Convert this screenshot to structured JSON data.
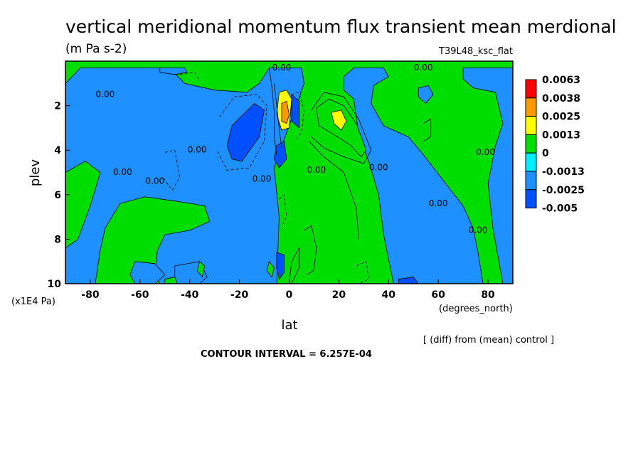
{
  "chart_data": {
    "type": "contour",
    "title": "vertical meridional momentum flux transient mean merdional",
    "units": "(m Pa s-2)",
    "model_label": "T39L48_ksc_flat",
    "xlabel": "lat",
    "x_units": "(degrees_north)",
    "ylabel": "plev",
    "y_units": "(x1E4 Pa)",
    "xlim": [
      -90,
      90
    ],
    "ylim": [
      10,
      0
    ],
    "x_ticks": [
      -80,
      -60,
      -40,
      -20,
      0,
      20,
      40,
      60,
      80
    ],
    "y_ticks": [
      2,
      4,
      6,
      8,
      10
    ],
    "note": "[ (diff) from (mean) control ]",
    "contour_interval_text": "CONTOUR INTERVAL = 6.257E-04",
    "colorbar": {
      "levels": [
        "0.0063",
        "0.0038",
        "0.0025",
        "0.0013",
        "0",
        "-0.0013",
        "-0.0025",
        "-0.005"
      ],
      "colors": [
        "#ff0000",
        "#ff9900",
        "#ffff00",
        "#00dd00",
        "#00eeff",
        "#1e90ff",
        "#0050ff"
      ]
    },
    "contour_label_text": "0.00",
    "contour_labels": [
      {
        "lat": -3,
        "plev": 0.3
      },
      {
        "lat": 54,
        "plev": 0.3
      },
      {
        "lat": -74,
        "plev": 1.5
      },
      {
        "lat": -37,
        "plev": 4.0
      },
      {
        "lat": -67,
        "plev": 5.0
      },
      {
        "lat": -54,
        "plev": 5.4
      },
      {
        "lat": -11,
        "plev": 5.3
      },
      {
        "lat": 11,
        "plev": 4.9
      },
      {
        "lat": 36,
        "plev": 4.8
      },
      {
        "lat": 79,
        "plev": 4.1
      },
      {
        "lat": 60,
        "plev": 6.4
      },
      {
        "lat": 76,
        "plev": 7.6
      }
    ],
    "regions": [
      {
        "name": "cyan-west-band",
        "level": "-0.0013",
        "polygon": [
          [
            -90,
            1.0
          ],
          [
            -84,
            0.3
          ],
          [
            -76,
            0.3
          ],
          [
            -62,
            0.3
          ],
          [
            -48,
            0.3
          ],
          [
            -42,
            1.0
          ],
          [
            -30,
            1.3
          ],
          [
            -17,
            1.4
          ],
          [
            -12,
            1.0
          ],
          [
            -8,
            0.3
          ],
          [
            5,
            0.3
          ],
          [
            6,
            1.0
          ],
          [
            3,
            2.0
          ],
          [
            -1,
            3.2
          ],
          [
            -6,
            4.8
          ],
          [
            -4,
            7.0
          ],
          [
            -5,
            10
          ],
          [
            -52,
            10
          ],
          [
            -54,
            9.6
          ],
          [
            -53,
            8.5
          ],
          [
            -50,
            7.8
          ],
          [
            -40,
            7.6
          ],
          [
            -32,
            7.2
          ],
          [
            -34,
            6.5
          ],
          [
            -45,
            6.3
          ],
          [
            -58,
            6.1
          ],
          [
            -68,
            6.4
          ],
          [
            -74,
            7.5
          ],
          [
            -76,
            8.5
          ],
          [
            -78,
            10
          ],
          [
            -90,
            10
          ],
          [
            -90,
            8.4
          ],
          [
            -85,
            8.0
          ],
          [
            -80,
            6.5
          ],
          [
            -76,
            5.0
          ],
          [
            -82,
            4.5
          ],
          [
            -90,
            5.0
          ]
        ]
      },
      {
        "name": "cyan-east-band",
        "level": "-0.0013",
        "polygon": [
          [
            26,
            0.3
          ],
          [
            38,
            0.3
          ],
          [
            40,
            0.7
          ],
          [
            34,
            1.1
          ],
          [
            33,
            1.9
          ],
          [
            38,
            2.9
          ],
          [
            48,
            3.4
          ],
          [
            54,
            4.2
          ],
          [
            63,
            5.5
          ],
          [
            70,
            6.5
          ],
          [
            74,
            7.5
          ],
          [
            76,
            8.6
          ],
          [
            78,
            10
          ],
          [
            42,
            10
          ],
          [
            38,
            7.8
          ],
          [
            36,
            6.0
          ],
          [
            32,
            4.5
          ],
          [
            28,
            3.3
          ],
          [
            26,
            1.7
          ],
          [
            22,
            1.3
          ],
          [
            22,
            0.7
          ]
        ]
      },
      {
        "name": "cyan-northpole",
        "level": "-0.0013",
        "polygon": [
          [
            70,
            0.3
          ],
          [
            90,
            0.3
          ],
          [
            90,
            10
          ],
          [
            86,
            10
          ],
          [
            82,
            7.5
          ],
          [
            80,
            5.5
          ],
          [
            83,
            3.8
          ],
          [
            86,
            2.8
          ],
          [
            83,
            1.4
          ],
          [
            74,
            1.2
          ],
          [
            70,
            0.8
          ]
        ]
      },
      {
        "name": "cyan-sth-small",
        "level": "-0.0013",
        "polygon": [
          [
            52,
            1.2
          ],
          [
            56,
            1.1
          ],
          [
            58,
            1.5
          ],
          [
            55,
            1.9
          ],
          [
            52,
            1.6
          ]
        ]
      },
      {
        "name": "cyan-high",
        "level": "-0.0013",
        "polygon": [
          [
            -52,
            0.3
          ],
          [
            -42,
            0.3
          ],
          [
            -41,
            0.5
          ],
          [
            -46,
            0.6
          ],
          [
            -52,
            0.5
          ]
        ]
      },
      {
        "name": "cyan-low-60s",
        "level": "-0.0013",
        "polygon": [
          [
            -62,
            9.0
          ],
          [
            -54,
            9.1
          ],
          [
            -50,
            9.6
          ],
          [
            -54,
            10
          ],
          [
            -62,
            10
          ],
          [
            -64,
            9.6
          ]
        ]
      },
      {
        "name": "cyan-low-40s",
        "level": "-0.0013",
        "polygon": [
          [
            -46,
            9.2
          ],
          [
            -36,
            9.0
          ],
          [
            -33,
            9.7
          ],
          [
            -36,
            10
          ],
          [
            -46,
            10
          ]
        ]
      },
      {
        "name": "blue-20S",
        "level": "-0.0025",
        "polygon": [
          [
            -23,
            2.9
          ],
          [
            -14,
            1.9
          ],
          [
            -10,
            2.2
          ],
          [
            -12,
            3.4
          ],
          [
            -19,
            4.5
          ],
          [
            -23,
            4.4
          ],
          [
            -25,
            3.8
          ]
        ]
      },
      {
        "name": "blue-eq-upper",
        "level": "-0.0025",
        "polygon": [
          [
            1,
            1.5
          ],
          [
            4,
            1.8
          ],
          [
            4,
            3.0
          ],
          [
            1,
            2.7
          ]
        ]
      },
      {
        "name": "blue-eq-mid",
        "level": "-0.0025",
        "polygon": [
          [
            -5,
            3.8
          ],
          [
            -2,
            3.6
          ],
          [
            -1,
            4.4
          ],
          [
            -4,
            4.8
          ],
          [
            -6,
            4.4
          ]
        ]
      },
      {
        "name": "blue-eq-low",
        "level": "-0.0025",
        "polygon": [
          [
            -5,
            8.6
          ],
          [
            -2,
            8.7
          ],
          [
            -2,
            9.5
          ],
          [
            -4,
            9.8
          ],
          [
            -5,
            9.3
          ]
        ]
      },
      {
        "name": "blue-low-48",
        "level": "-0.0025",
        "polygon": [
          [
            44,
            9.8
          ],
          [
            50,
            9.7
          ],
          [
            52,
            10
          ],
          [
            44,
            10
          ]
        ]
      },
      {
        "name": "orange-eq",
        "level": "0.0025",
        "polygon": [
          [
            -4,
            1.4
          ],
          [
            -1,
            1.3
          ],
          [
            1,
            1.7
          ],
          [
            0,
            3.0
          ],
          [
            -3,
            3.1
          ],
          [
            -5,
            2.4
          ]
        ]
      },
      {
        "name": "red-eq",
        "level": "0.0038",
        "polygon": [
          [
            -3,
            1.9
          ],
          [
            -1,
            1.8
          ],
          [
            0,
            2.4
          ],
          [
            -1,
            2.8
          ],
          [
            -3,
            2.7
          ]
        ]
      },
      {
        "name": "yellow-20N",
        "level": "0.0013",
        "polygon": [
          [
            11,
            2.1
          ],
          [
            16,
            1.7
          ],
          [
            22,
            2.0
          ],
          [
            27,
            2.8
          ],
          [
            31,
            4.0
          ],
          [
            29,
            4.3
          ],
          [
            25,
            3.8
          ],
          [
            18,
            3.3
          ],
          [
            12,
            2.9
          ]
        ]
      },
      {
        "name": "orange-20N",
        "level": "0.0025",
        "polygon": [
          [
            17,
            2.3
          ],
          [
            21,
            2.2
          ],
          [
            23,
            2.7
          ],
          [
            21,
            3.1
          ],
          [
            18,
            2.8
          ]
        ]
      },
      {
        "name": "yellow-low-eq",
        "level": "0.0013",
        "polygon": [
          [
            1,
            9.0
          ],
          [
            4,
            8.4
          ],
          [
            4,
            9.3
          ],
          [
            1,
            10
          ],
          [
            0,
            10
          ]
        ]
      },
      {
        "name": "yellow-low-35S",
        "level": "0.0013",
        "polygon": [
          [
            -36,
            9.0
          ],
          [
            -34,
            9.2
          ],
          [
            -35,
            9.7
          ],
          [
            -37,
            9.4
          ]
        ]
      },
      {
        "name": "yellow-low-8S",
        "level": "0.0013",
        "polygon": [
          [
            -8,
            9.0
          ],
          [
            -6,
            9.3
          ],
          [
            -7,
            9.7
          ],
          [
            -9,
            9.4
          ]
        ]
      },
      {
        "name": "yellow-low-50S",
        "level": "0.0013",
        "polygon": [
          [
            -50,
            9.8
          ],
          [
            -46,
            9.7
          ],
          [
            -45,
            10
          ],
          [
            -50,
            10
          ]
        ]
      }
    ],
    "contour_lines": [
      {
        "style": "solid",
        "points": [
          [
            -8,
            0.3
          ],
          [
            -7,
            1.1
          ],
          [
            -6,
            2.3
          ],
          [
            -6,
            3.4
          ],
          [
            -5,
            4.2
          ]
        ]
      },
      {
        "style": "solid",
        "points": [
          [
            -6,
            1.0
          ],
          [
            -5,
            2.0
          ],
          [
            -4,
            3.0
          ],
          [
            -3,
            3.9
          ]
        ]
      },
      {
        "style": "dashed",
        "points": [
          [
            1,
            1.5
          ],
          [
            4,
            1.4
          ],
          [
            6,
            2.2
          ],
          [
            5,
            3.2
          ],
          [
            3,
            3.5
          ]
        ]
      },
      {
        "style": "dashed",
        "points": [
          [
            -28,
            2.5
          ],
          [
            -22,
            1.6
          ],
          [
            -13,
            1.5
          ],
          [
            -9,
            2.0
          ],
          [
            -10,
            3.6
          ],
          [
            -16,
            4.8
          ],
          [
            -25,
            4.9
          ],
          [
            -29,
            4.0
          ]
        ]
      },
      {
        "style": "dashed",
        "points": [
          [
            -50,
            4.1
          ],
          [
            -46,
            4.0
          ],
          [
            -44,
            5.2
          ],
          [
            -47,
            5.8
          ],
          [
            -51,
            5.2
          ]
        ]
      },
      {
        "style": "solid",
        "points": [
          [
            9,
            2.2
          ],
          [
            14,
            1.4
          ],
          [
            22,
            1.6
          ],
          [
            28,
            2.6
          ],
          [
            33,
            4.0
          ],
          [
            30,
            4.6
          ],
          [
            22,
            4.3
          ],
          [
            14,
            3.9
          ],
          [
            9,
            3.4
          ]
        ]
      },
      {
        "style": "solid",
        "points": [
          [
            8,
            3.6
          ],
          [
            14,
            4.3
          ],
          [
            22,
            5.0
          ],
          [
            27,
            6.6
          ],
          [
            28,
            8.0
          ]
        ]
      },
      {
        "style": "dashed",
        "points": [
          [
            27,
            9.2
          ],
          [
            31,
            9.0
          ],
          [
            32,
            9.8
          ],
          [
            28,
            10
          ]
        ]
      },
      {
        "style": "solid",
        "points": [
          [
            54,
            2.8
          ],
          [
            57,
            2.6
          ],
          [
            57,
            3.4
          ],
          [
            54,
            3.6
          ]
        ]
      },
      {
        "style": "dashed",
        "points": [
          [
            -44,
            0.6
          ],
          [
            -38,
            0.5
          ],
          [
            -36,
            0.9
          ]
        ]
      },
      {
        "style": "solid",
        "points": [
          [
            6,
            7.6
          ],
          [
            9,
            7.4
          ],
          [
            11,
            8.4
          ],
          [
            10,
            9.4
          ],
          [
            7,
            9.6
          ]
        ]
      },
      {
        "style": "dashed",
        "points": [
          [
            -4,
            6.2
          ],
          [
            -2,
            6.0
          ],
          [
            -1,
            7.0
          ],
          [
            -3,
            7.4
          ]
        ]
      }
    ]
  }
}
